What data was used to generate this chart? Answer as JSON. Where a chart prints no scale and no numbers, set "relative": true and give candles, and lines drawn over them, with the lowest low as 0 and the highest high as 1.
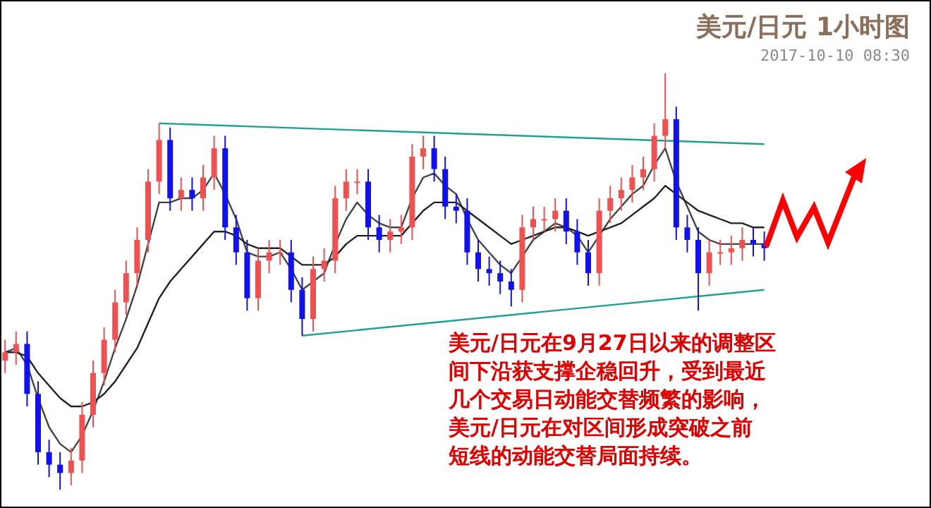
{
  "chart_data": {
    "type": "candlestick",
    "relative": true,
    "title": "美元/日元 1小时图",
    "subtitle": "2017-10-10 08:30",
    "annotations": [
      "美元/日元在9月27日以来的调整区",
      "间下沿获支撑企稳回升，受到最近",
      "几个交易日动能交替频繁的影响，",
      "美元/日元在对区间形成突破之前",
      "短线的动能交替局面持续。"
    ],
    "categories": [
      null,
      null,
      null,
      null,
      null,
      null,
      null,
      null,
      null,
      null,
      null,
      null,
      null,
      null,
      null,
      null,
      null,
      null,
      null,
      null,
      null,
      null,
      null,
      null,
      null,
      null,
      null,
      null,
      null,
      null,
      null,
      null,
      null,
      null,
      null,
      null,
      null,
      null,
      null,
      null,
      null,
      null,
      null,
      null,
      null,
      null,
      null,
      null,
      null,
      null,
      null,
      null,
      null,
      null,
      null,
      null,
      null,
      null,
      null,
      null,
      null,
      null,
      null,
      null,
      null,
      null,
      null,
      null,
      null,
      null
    ],
    "ohlc": [
      [
        0.31,
        0.36,
        0.28,
        0.33
      ],
      [
        0.33,
        0.38,
        0.3,
        0.35
      ],
      [
        0.35,
        0.38,
        0.2,
        0.23
      ],
      [
        0.23,
        0.26,
        0.06,
        0.09
      ],
      [
        0.09,
        0.12,
        0.03,
        0.06
      ],
      [
        0.06,
        0.09,
        0.0,
        0.04
      ],
      [
        0.04,
        0.1,
        0.01,
        0.07
      ],
      [
        0.07,
        0.21,
        0.04,
        0.18
      ],
      [
        0.18,
        0.31,
        0.15,
        0.28
      ],
      [
        0.28,
        0.39,
        0.25,
        0.36
      ],
      [
        0.36,
        0.48,
        0.33,
        0.45
      ],
      [
        0.45,
        0.55,
        0.42,
        0.52
      ],
      [
        0.52,
        0.63,
        0.49,
        0.6
      ],
      [
        0.6,
        0.77,
        0.57,
        0.74
      ],
      [
        0.74,
        0.88,
        0.71,
        0.84
      ],
      [
        0.84,
        0.87,
        0.67,
        0.7
      ],
      [
        0.7,
        0.75,
        0.67,
        0.72
      ],
      [
        0.72,
        0.75,
        0.67,
        0.7
      ],
      [
        0.7,
        0.78,
        0.67,
        0.75
      ],
      [
        0.75,
        0.85,
        0.72,
        0.82
      ],
      [
        0.82,
        0.85,
        0.6,
        0.63
      ],
      [
        0.63,
        0.66,
        0.54,
        0.57
      ],
      [
        0.57,
        0.6,
        0.43,
        0.46
      ],
      [
        0.46,
        0.58,
        0.43,
        0.55
      ],
      [
        0.55,
        0.6,
        0.52,
        0.57
      ],
      [
        0.57,
        0.6,
        0.54,
        0.57
      ],
      [
        0.57,
        0.6,
        0.45,
        0.48
      ],
      [
        0.48,
        0.51,
        0.37,
        0.41
      ],
      [
        0.41,
        0.56,
        0.38,
        0.53
      ],
      [
        0.53,
        0.58,
        0.5,
        0.55
      ],
      [
        0.55,
        0.73,
        0.52,
        0.7
      ],
      [
        0.7,
        0.77,
        0.67,
        0.74
      ],
      [
        0.74,
        0.77,
        0.71,
        0.74
      ],
      [
        0.74,
        0.77,
        0.6,
        0.63
      ],
      [
        0.63,
        0.66,
        0.57,
        0.6
      ],
      [
        0.6,
        0.65,
        0.57,
        0.62
      ],
      [
        0.62,
        0.66,
        0.59,
        0.63
      ],
      [
        0.63,
        0.83,
        0.6,
        0.8
      ],
      [
        0.8,
        0.85,
        0.77,
        0.82
      ],
      [
        0.82,
        0.85,
        0.74,
        0.77
      ],
      [
        0.77,
        0.8,
        0.65,
        0.68
      ],
      [
        0.68,
        0.71,
        0.64,
        0.67
      ],
      [
        0.67,
        0.7,
        0.54,
        0.57
      ],
      [
        0.57,
        0.6,
        0.5,
        0.53
      ],
      [
        0.53,
        0.56,
        0.49,
        0.52
      ],
      [
        0.52,
        0.55,
        0.47,
        0.5
      ],
      [
        0.5,
        0.53,
        0.44,
        0.48
      ],
      [
        0.48,
        0.66,
        0.45,
        0.63
      ],
      [
        0.63,
        0.68,
        0.6,
        0.65
      ],
      [
        0.65,
        0.68,
        0.62,
        0.65
      ],
      [
        0.65,
        0.7,
        0.62,
        0.67
      ],
      [
        0.67,
        0.7,
        0.59,
        0.62
      ],
      [
        0.62,
        0.65,
        0.54,
        0.57
      ],
      [
        0.57,
        0.6,
        0.49,
        0.52
      ],
      [
        0.52,
        0.7,
        0.49,
        0.67
      ],
      [
        0.67,
        0.73,
        0.64,
        0.7
      ],
      [
        0.7,
        0.75,
        0.67,
        0.72
      ],
      [
        0.72,
        0.78,
        0.69,
        0.75
      ],
      [
        0.75,
        0.8,
        0.72,
        0.77
      ],
      [
        0.77,
        0.88,
        0.74,
        0.85
      ],
      [
        0.85,
        1.0,
        0.82,
        0.89
      ],
      [
        0.89,
        0.92,
        0.6,
        0.63
      ],
      [
        0.63,
        0.66,
        0.57,
        0.6
      ],
      [
        0.6,
        0.63,
        0.43,
        0.52
      ],
      [
        0.52,
        0.6,
        0.49,
        0.57
      ],
      [
        0.57,
        0.6,
        0.54,
        0.57
      ],
      [
        0.57,
        0.61,
        0.54,
        0.58
      ],
      [
        0.58,
        0.63,
        0.55,
        0.6
      ],
      [
        0.6,
        0.63,
        0.56,
        0.59
      ],
      [
        0.59,
        0.62,
        0.55,
        0.58
      ]
    ],
    "colors": [
      "#f05050",
      "#f05050",
      "#1010f0",
      "#1010f0",
      "#1010f0",
      "#1010f0",
      "#f05050",
      "#f05050",
      "#f05050",
      "#f05050",
      "#f05050",
      "#f05050",
      "#f05050",
      "#f05050",
      "#f05050",
      "#1010f0",
      "#f05050",
      "#1010f0",
      "#f05050",
      "#f05050",
      "#1010f0",
      "#1010f0",
      "#1010f0",
      "#f05050",
      "#f05050",
      "#f05050",
      "#1010f0",
      "#1010f0",
      "#f05050",
      "#f05050",
      "#f05050",
      "#f05050",
      "#f05050",
      "#1010f0",
      "#1010f0",
      "#f05050",
      "#f05050",
      "#f05050",
      "#f05050",
      "#1010f0",
      "#1010f0",
      "#1010f0",
      "#1010f0",
      "#1010f0",
      "#1010f0",
      "#1010f0",
      "#1010f0",
      "#f05050",
      "#f05050",
      "#f05050",
      "#f05050",
      "#1010f0",
      "#1010f0",
      "#1010f0",
      "#f05050",
      "#f05050",
      "#f05050",
      "#f05050",
      "#f05050",
      "#f05050",
      "#f05050",
      "#1010f0",
      "#1010f0",
      "#1010f0",
      "#f05050",
      "#f05050",
      "#f05050",
      "#f05050",
      "#1010f0",
      "#1010f0"
    ],
    "series": [
      {
        "type": "line",
        "color": "#444444",
        "values": [
          0.33,
          0.34,
          0.3,
          0.22,
          0.15,
          0.11,
          0.09,
          0.13,
          0.19,
          0.26,
          0.34,
          0.41,
          0.49,
          0.59,
          0.69,
          0.69,
          0.7,
          0.7,
          0.72,
          0.76,
          0.71,
          0.65,
          0.57,
          0.56,
          0.56,
          0.57,
          0.53,
          0.48,
          0.5,
          0.52,
          0.59,
          0.65,
          0.69,
          0.66,
          0.64,
          0.63,
          0.63,
          0.7,
          0.75,
          0.76,
          0.73,
          0.71,
          0.65,
          0.6,
          0.57,
          0.54,
          0.52,
          0.56,
          0.6,
          0.62,
          0.64,
          0.63,
          0.61,
          0.57,
          0.61,
          0.65,
          0.68,
          0.71,
          0.73,
          0.78,
          0.82,
          0.74,
          0.68,
          0.62,
          0.6,
          0.59,
          0.59,
          0.59,
          0.59,
          0.59
        ]
      },
      {
        "type": "line",
        "color": "#222222",
        "values": [
          0.33,
          0.33,
          0.32,
          0.28,
          0.25,
          0.22,
          0.2,
          0.2,
          0.21,
          0.23,
          0.26,
          0.3,
          0.34,
          0.4,
          0.46,
          0.5,
          0.53,
          0.56,
          0.59,
          0.62,
          0.62,
          0.61,
          0.59,
          0.58,
          0.58,
          0.58,
          0.56,
          0.54,
          0.54,
          0.54,
          0.56,
          0.59,
          0.61,
          0.61,
          0.61,
          0.61,
          0.61,
          0.64,
          0.67,
          0.69,
          0.69,
          0.69,
          0.67,
          0.65,
          0.63,
          0.61,
          0.59,
          0.6,
          0.61,
          0.62,
          0.63,
          0.63,
          0.62,
          0.61,
          0.62,
          0.63,
          0.64,
          0.66,
          0.68,
          0.7,
          0.73,
          0.71,
          0.69,
          0.67,
          0.66,
          0.65,
          0.64,
          0.64,
          0.63,
          0.63
        ]
      },
      {
        "type": "line",
        "color": "#20a090",
        "values": [
          null,
          null,
          null,
          null,
          null,
          null,
          null,
          null,
          null,
          null,
          null,
          null,
          null,
          null,
          0.88,
          null,
          null,
          null,
          null,
          null,
          null,
          null,
          null,
          null,
          null,
          null,
          null,
          null,
          null,
          null,
          null,
          null,
          null,
          null,
          null,
          null,
          null,
          null,
          null,
          null,
          null,
          null,
          null,
          null,
          null,
          null,
          null,
          null,
          null,
          null,
          null,
          null,
          null,
          null,
          null,
          null,
          null,
          null,
          null,
          null,
          null,
          null,
          null,
          null,
          null,
          null,
          null,
          null,
          null,
          0.83
        ]
      },
      {
        "type": "line",
        "color": "#20a090",
        "values": [
          null,
          null,
          null,
          null,
          null,
          null,
          null,
          null,
          null,
          null,
          null,
          null,
          null,
          null,
          null,
          null,
          null,
          null,
          null,
          null,
          null,
          null,
          null,
          null,
          null,
          null,
          null,
          0.37,
          null,
          null,
          null,
          null,
          null,
          null,
          null,
          null,
          null,
          null,
          null,
          null,
          null,
          null,
          null,
          null,
          null,
          null,
          null,
          null,
          null,
          null,
          null,
          null,
          null,
          null,
          null,
          null,
          null,
          null,
          null,
          null,
          null,
          null,
          null,
          null,
          null,
          null,
          null,
          null,
          null,
          0.48
        ]
      }
    ]
  }
}
